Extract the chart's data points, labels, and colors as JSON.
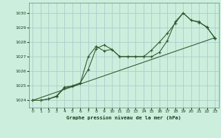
{
  "title": "Graphe pression niveau de la mer (hPa)",
  "bg_color": "#cceedd",
  "grid_color": "#aacccc",
  "line_color": "#2d5a2d",
  "ylim": [
    1023.5,
    1030.7
  ],
  "xlim": [
    -0.5,
    23.5
  ],
  "yticks": [
    1024,
    1025,
    1026,
    1027,
    1028,
    1029,
    1030
  ],
  "xticks": [
    0,
    1,
    2,
    3,
    4,
    5,
    6,
    7,
    8,
    9,
    10,
    11,
    12,
    13,
    14,
    15,
    16,
    17,
    18,
    19,
    20,
    21,
    22,
    23
  ],
  "series1_x": [
    0,
    1,
    2,
    3,
    4,
    5,
    6,
    7,
    8,
    9,
    10,
    11,
    12,
    13,
    14,
    15,
    16,
    17,
    18,
    19,
    20,
    21,
    22,
    23
  ],
  "series1_y": [
    1024.0,
    1024.0,
    1024.1,
    1024.3,
    1024.9,
    1025.0,
    1025.2,
    1026.1,
    1027.55,
    1027.8,
    1027.5,
    1027.0,
    1027.0,
    1027.0,
    1027.0,
    1027.0,
    1027.3,
    1028.1,
    1029.4,
    1030.0,
    1029.5,
    1029.4,
    1029.0,
    1028.3
  ],
  "series2_x": [
    0,
    1,
    2,
    3,
    4,
    5,
    6,
    7,
    8,
    9,
    10,
    11,
    12,
    13,
    14,
    15,
    16,
    17,
    18,
    19,
    20,
    21,
    22,
    23
  ],
  "series2_y": [
    1024.0,
    1024.0,
    1024.1,
    1024.25,
    1024.85,
    1024.95,
    1025.15,
    1027.0,
    1027.7,
    1027.4,
    1027.5,
    1027.0,
    1027.0,
    1027.0,
    1027.0,
    1027.45,
    1028.0,
    1028.6,
    1029.3,
    1030.0,
    1029.5,
    1029.35,
    1029.05,
    1028.25
  ],
  "series3_x": [
    0,
    23
  ],
  "series3_y": [
    1024.0,
    1028.3
  ]
}
